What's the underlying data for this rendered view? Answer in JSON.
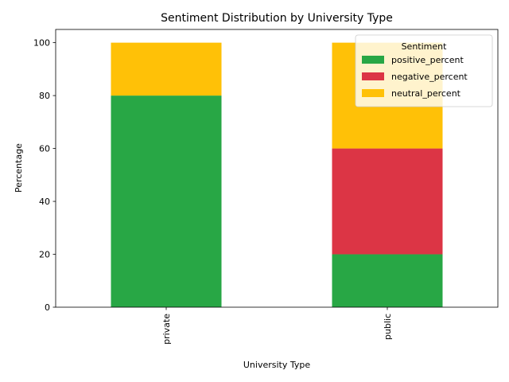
{
  "chart_data": {
    "type": "bar",
    "stacked": true,
    "title": "Sentiment Distribution by University Type",
    "xlabel": "University Type",
    "ylabel": "Percentage",
    "categories": [
      "private",
      "public"
    ],
    "ylim": [
      0,
      105
    ],
    "yticks": [
      0,
      20,
      40,
      60,
      80,
      100
    ],
    "grid": false,
    "legend": {
      "title": "Sentiment",
      "placement": "top-right"
    },
    "series": [
      {
        "name": "positive_percent",
        "values": [
          80,
          20
        ],
        "color": "#28a745"
      },
      {
        "name": "negative_percent",
        "values": [
          0,
          40
        ],
        "color": "#dc3545"
      },
      {
        "name": "neutral_percent",
        "values": [
          20,
          40
        ],
        "color": "#ffc107"
      }
    ]
  }
}
